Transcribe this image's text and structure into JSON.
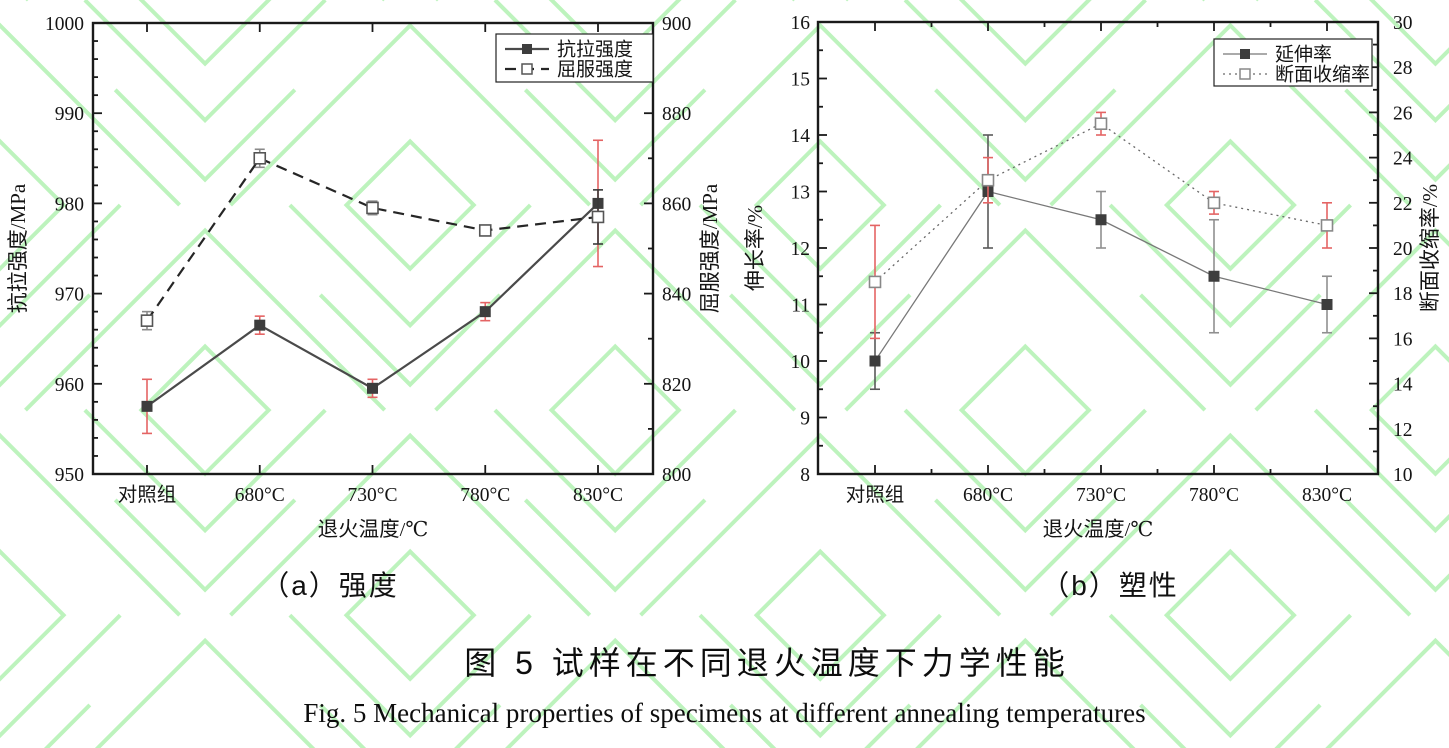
{
  "figure": {
    "caption_cn": "图 5  试样在不同退火温度下力学性能",
    "caption_en": "Fig. 5 Mechanical properties of specimens at different annealing temperatures"
  },
  "colors": {
    "axis": "#1a1a1a",
    "marker_dark": "#3d3d3d",
    "error_red": "#e46464",
    "error_gray": "#8a8a8a",
    "watermark_green": "#bdf3bd"
  },
  "chart_data": [
    {
      "id": "chart-a",
      "type": "line",
      "subcaption": "（a）强度",
      "xlabel": "退火温度/℃",
      "categories": [
        "对照组",
        "680°C",
        "730°C",
        "780°C",
        "830°C"
      ],
      "left_axis": {
        "label": "抗拉强度/MPa",
        "min": 950,
        "max": 1000,
        "major": 10,
        "minor": 2,
        "ticks": [
          950,
          960,
          970,
          980,
          990,
          1000
        ]
      },
      "right_axis": {
        "label": "屈服强度/MPa",
        "min": 800,
        "max": 900,
        "major": 20,
        "minor": 10,
        "ticks": [
          800,
          820,
          840,
          860,
          880,
          900
        ]
      },
      "legend": [
        "抗拉强度",
        "屈服强度"
      ],
      "legend_position": "top-right",
      "series": [
        {
          "name": "抗拉强度",
          "axis": "left",
          "line": "solid",
          "marker": "filled-square",
          "values": [
            957.5,
            966.5,
            959.5,
            968,
            980
          ],
          "errors": [
            3,
            1,
            1,
            1,
            7
          ],
          "error_colors": [
            "#e46464",
            "#e46464",
            "#e46464",
            "#e46464",
            "#e46464"
          ]
        },
        {
          "name": "屈服强度",
          "axis": "right",
          "line": "dashed",
          "marker": "open-square",
          "values": [
            834,
            870,
            859,
            854,
            857
          ],
          "errors": [
            2,
            2,
            1.5,
            1,
            6
          ],
          "error_colors": [
            "#8a8a8a",
            "#8a8a8a",
            "#8a8a8a",
            "#8a8a8a",
            "#3a3a3a"
          ]
        }
      ]
    },
    {
      "id": "chart-b",
      "type": "line",
      "subcaption": "（b）塑性",
      "xlabel": "退火温度/℃",
      "categories": [
        "对照组",
        "680°C",
        "730°C",
        "780°C",
        "830°C"
      ],
      "left_axis": {
        "label": "伸长率/%",
        "min": 8,
        "max": 16,
        "major": 1,
        "minor": 0.5,
        "ticks": [
          8,
          9,
          10,
          11,
          12,
          13,
          14,
          15,
          16
        ]
      },
      "right_axis": {
        "label": "断面收缩率/%",
        "min": 10,
        "max": 30,
        "major": 2,
        "minor": 1,
        "ticks": [
          10,
          12,
          14,
          16,
          18,
          20,
          22,
          24,
          26,
          28,
          30
        ]
      },
      "legend": [
        "延伸率",
        "断面收缩率"
      ],
      "legend_position": "top-right",
      "series": [
        {
          "name": "延伸率",
          "axis": "left",
          "line": "solid",
          "marker": "filled-square",
          "values": [
            10,
            13,
            12.5,
            11.5,
            11
          ],
          "errors": [
            0.5,
            1,
            0.5,
            1,
            0.5
          ],
          "error_colors": [
            "#5a5a5a",
            "#5a5a5a",
            "#8f8f8f",
            "#8f8f8f",
            "#8f8f8f"
          ]
        },
        {
          "name": "断面收缩率",
          "axis": "right",
          "line": "dotted",
          "marker": "open-square",
          "values": [
            18.5,
            23,
            25.5,
            22,
            21
          ],
          "errors": [
            2.5,
            1,
            0.5,
            0.5,
            1
          ],
          "error_colors": [
            "#e46464",
            "#e46464",
            "#e46464",
            "#e46464",
            "#e46464"
          ]
        }
      ]
    }
  ]
}
